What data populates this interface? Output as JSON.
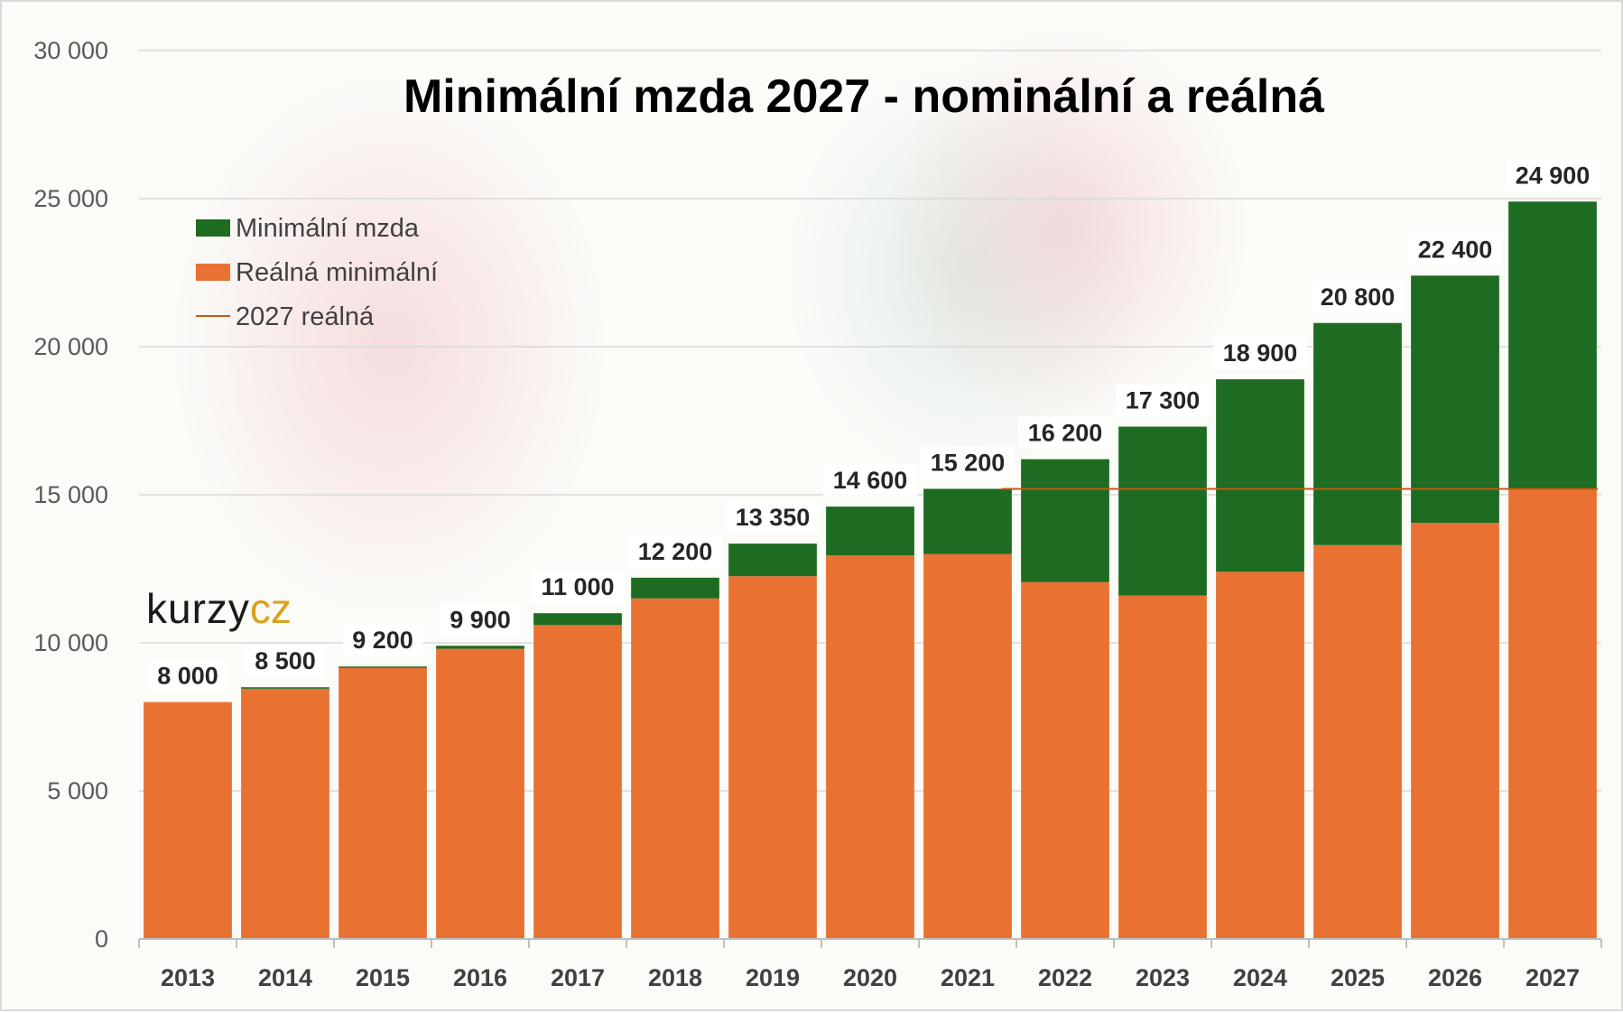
{
  "chart_data": {
    "type": "bar",
    "stacked": true,
    "title": "Minimální mzda 2027 - nominální a reálná",
    "categories": [
      "2013",
      "2014",
      "2015",
      "2016",
      "2017",
      "2018",
      "2019",
      "2020",
      "2021",
      "2022",
      "2023",
      "2024",
      "2025",
      "2026",
      "2027"
    ],
    "series": [
      {
        "name": "Reálná minimální",
        "color": "#e97132",
        "values": [
          8000,
          8450,
          9150,
          9800,
          10600,
          11500,
          12250,
          12950,
          13000,
          12050,
          11600,
          12400,
          13300,
          14050,
          15200
        ]
      },
      {
        "name": "Minimální mzda",
        "color": "#1e6b22",
        "total_values": [
          8000,
          8500,
          9200,
          9900,
          11000,
          12200,
          13350,
          14600,
          15200,
          16200,
          17300,
          18900,
          20800,
          22400,
          24900
        ]
      }
    ],
    "reference_line": {
      "name": "2027 reálná",
      "value": 15200,
      "color": "#c55a11"
    },
    "data_labels": [
      "8 000",
      "8 500",
      "9 200",
      "9 900",
      "11 000",
      "12 200",
      "13 350",
      "14 600",
      "15 200",
      "16 200",
      "17 300",
      "18 900",
      "20 800",
      "22 400",
      "24 900"
    ],
    "y_ticks": [
      0,
      5000,
      10000,
      15000,
      20000,
      25000,
      30000
    ],
    "y_tick_labels": [
      "0",
      "5 000",
      "10 000",
      "15 000",
      "20 000",
      "25 000",
      "30 000"
    ],
    "ylim": [
      0,
      30000
    ],
    "grid": true,
    "legend_position": "top-left",
    "xlabel": "",
    "ylabel": ""
  },
  "legend": {
    "items": [
      {
        "label": "Minimální mzda",
        "kind": "box",
        "color": "#1e6b22"
      },
      {
        "label": "Reálná minimální",
        "kind": "box",
        "color": "#e97132"
      },
      {
        "label": "2027 reálná",
        "kind": "line",
        "color": "#c55a11"
      }
    ]
  },
  "logo": {
    "text_main": "kurzy",
    "text_accent": "cz"
  }
}
